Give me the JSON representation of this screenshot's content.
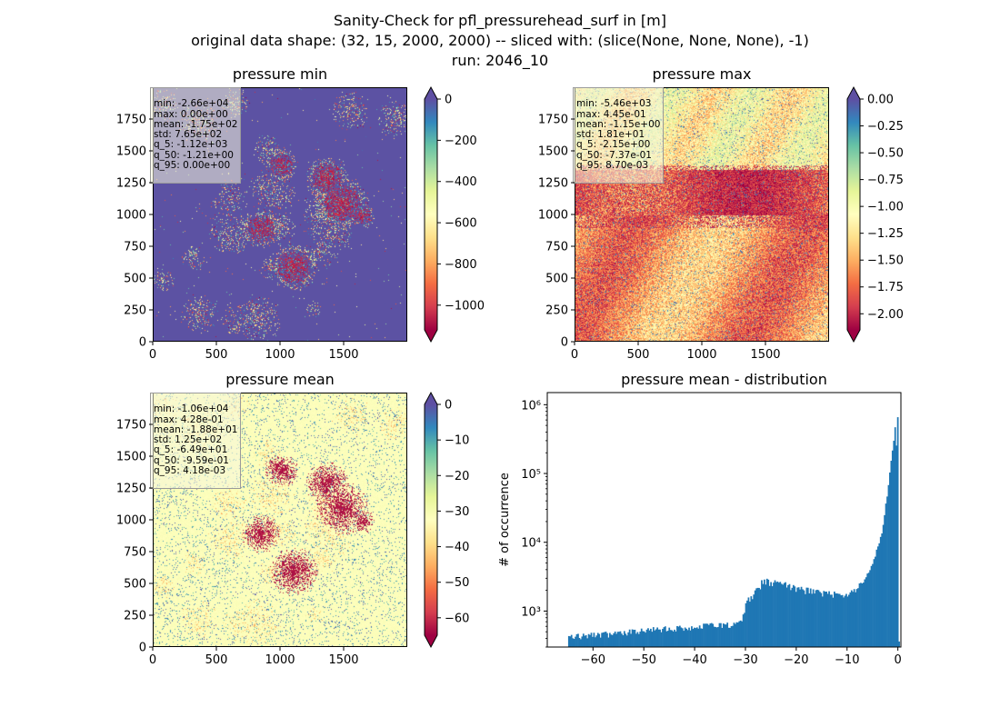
{
  "figure": {
    "title_line1": "Sanity-Check for pfl_pressurehead_surf in [m]",
    "title_line2": "original data shape: (32, 15, 2000, 2000) -- sliced with: (slice(None, None, None), -1)",
    "title_line3": "run: 2046_10"
  },
  "panels": [
    {
      "title": "pressure min",
      "stats": [
        "min: -2.66e+04",
        "max: 0.00e+00",
        "mean: -1.75e+02",
        "std: 7.65e+02",
        "q_5: -1.12e+03",
        "q_50: -1.21e+00",
        "q_95: 0.00e+00"
      ],
      "x_ticks": [
        "0",
        "500",
        "1000",
        "1500"
      ],
      "y_ticks": [
        "0",
        "250",
        "500",
        "750",
        "1000",
        "1250",
        "1500",
        "1750"
      ],
      "colorbar": {
        "vmin": -1120,
        "vmax": 0,
        "ticks": [
          "0",
          "−200",
          "−400",
          "−600",
          "−800",
          "−1000"
        ],
        "tick_values": [
          0,
          -200,
          -400,
          -600,
          -800,
          -1000
        ]
      }
    },
    {
      "title": "pressure max",
      "stats": [
        "min: -5.46e+03",
        "max: 4.45e-01",
        "mean: -1.15e+00",
        "std: 1.81e+01",
        "q_5: -2.15e+00",
        "q_50: -7.37e-01",
        "q_95: 8.70e-03"
      ],
      "x_ticks": [
        "0",
        "500",
        "1000",
        "1500"
      ],
      "y_ticks": [
        "0",
        "250",
        "500",
        "750",
        "1000",
        "1250",
        "1500",
        "1750"
      ],
      "colorbar": {
        "vmin": -2.15,
        "vmax": 0.0,
        "ticks": [
          "0.00",
          "−0.25",
          "−0.50",
          "−0.75",
          "−1.00",
          "−1.25",
          "−1.50",
          "−1.75",
          "−2.00"
        ],
        "tick_values": [
          0,
          -0.25,
          -0.5,
          -0.75,
          -1.0,
          -1.25,
          -1.5,
          -1.75,
          -2.0
        ]
      }
    },
    {
      "title": "pressure mean",
      "stats": [
        "min: -1.06e+04",
        "max: 4.28e-01",
        "mean: -1.88e+01",
        "std: 1.25e+02",
        "q_5: -6.49e+01",
        "q_50: -9.59e-01",
        "q_95: 4.18e-03"
      ],
      "x_ticks": [
        "0",
        "500",
        "1000",
        "1500"
      ],
      "y_ticks": [
        "0",
        "250",
        "500",
        "750",
        "1000",
        "1250",
        "1500",
        "1750"
      ],
      "colorbar": {
        "vmin": -64.9,
        "vmax": 0,
        "ticks": [
          "0",
          "−10",
          "−20",
          "−30",
          "−40",
          "−50",
          "−60"
        ],
        "tick_values": [
          0,
          -10,
          -20,
          -30,
          -40,
          -50,
          -60
        ]
      }
    }
  ],
  "histogram": {
    "title": "pressure mean - distribution",
    "ylabel": "# of occurrence",
    "x_ticks": [
      "−60",
      "−50",
      "−40",
      "−30",
      "−20",
      "−10",
      "0"
    ],
    "y_ticks": [
      "10³",
      "10⁴",
      "10⁵",
      "10⁶"
    ]
  },
  "colors": {
    "bar": "#1f77b4",
    "cmap": "Spectral",
    "extend_triangle_top": "#5e4fa2",
    "extend_triangle_bottom": "#9e0142"
  },
  "chart_data": [
    {
      "type": "heatmap",
      "title": "pressure min",
      "xlim": [
        0,
        2000
      ],
      "ylim": [
        0,
        2000
      ],
      "cmap": "Spectral",
      "clim": [
        -1120,
        0
      ]
    },
    {
      "type": "heatmap",
      "title": "pressure max",
      "xlim": [
        0,
        2000
      ],
      "ylim": [
        0,
        2000
      ],
      "cmap": "Spectral",
      "clim": [
        -2.15,
        0.0
      ]
    },
    {
      "type": "heatmap",
      "title": "pressure mean",
      "xlim": [
        0,
        2000
      ],
      "ylim": [
        0,
        2000
      ],
      "cmap": "Spectral",
      "clim": [
        -64.9,
        0
      ]
    },
    {
      "type": "bar",
      "title": "pressure mean - distribution",
      "ylabel": "# of occurrence",
      "yscale": "log",
      "xlim": [
        -69,
        0.6
      ],
      "ylim": [
        300,
        1500000
      ],
      "bin_width": 0.26,
      "breakpoints": [
        {
          "x": -64.9,
          "y": 420
        },
        {
          "x": -55,
          "y": 470
        },
        {
          "x": -45,
          "y": 560
        },
        {
          "x": -35,
          "y": 620
        },
        {
          "x": -31,
          "y": 660
        },
        {
          "x": -29.5,
          "y": 1500
        },
        {
          "x": -27,
          "y": 2400
        },
        {
          "x": -25,
          "y": 2700
        },
        {
          "x": -20,
          "y": 2200
        },
        {
          "x": -15,
          "y": 1800
        },
        {
          "x": -10,
          "y": 1700
        },
        {
          "x": -7,
          "y": 2500
        },
        {
          "x": -5,
          "y": 4500
        },
        {
          "x": -3,
          "y": 15000
        },
        {
          "x": -2,
          "y": 60000
        },
        {
          "x": -1,
          "y": 250000
        },
        {
          "x": -0.5,
          "y": 480000
        },
        {
          "x": -0.1,
          "y": 160000
        },
        {
          "x": 0.0,
          "y": 1200000
        },
        {
          "x": 0.4,
          "y": 1
        }
      ]
    }
  ]
}
